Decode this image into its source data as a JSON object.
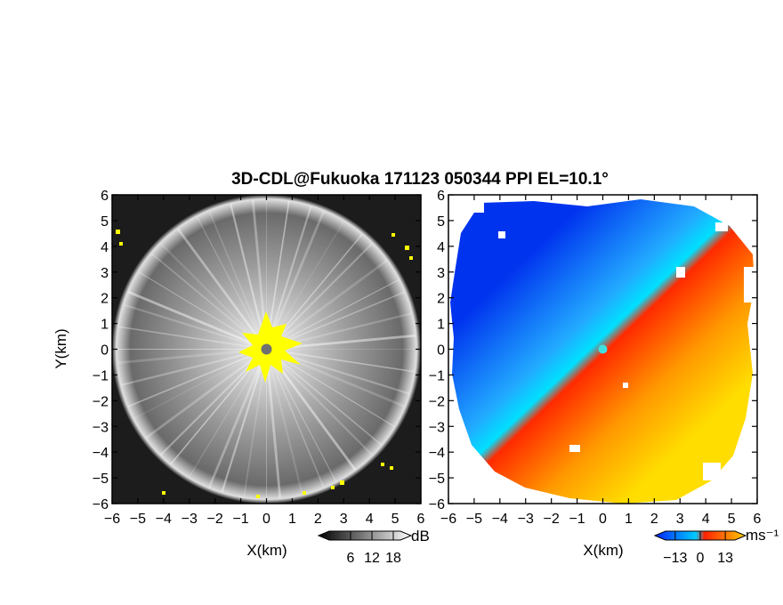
{
  "title": "3D-CDL@Fukuoka 171123 050344 PPI EL=10.1°",
  "chart_data": [
    {
      "type": "heatmap",
      "panel": "reflectivity",
      "xlabel": "X(km)",
      "ylabel": "Y(km)",
      "xlim": [
        -6,
        6
      ],
      "ylim": [
        -6,
        6
      ],
      "xticks": [
        "−6",
        "−5",
        "−4",
        "−3",
        "−2",
        "−1",
        "0",
        "1",
        "2",
        "3",
        "4",
        "5",
        "6"
      ],
      "yticks": [
        "6",
        "5",
        "4",
        "3",
        "2",
        "1",
        "0",
        "−1",
        "−2",
        "−3",
        "−4",
        "−5",
        "−6"
      ],
      "colorbar": {
        "unit": "dB",
        "ticks": [
          "6",
          "12",
          "18"
        ],
        "tick_values": [
          6,
          12,
          18
        ],
        "range": [
          0,
          20
        ],
        "colors": [
          "#000000",
          "#ffffff"
        ]
      },
      "radar_center": [
        0,
        0
      ],
      "data_range_radius_km": 5.9,
      "highlight_color": "#ffff00",
      "grid": false
    },
    {
      "type": "heatmap",
      "panel": "doppler_velocity",
      "xlabel": "X(km)",
      "ylabel": "",
      "xlim": [
        -6,
        6
      ],
      "ylim": [
        -6,
        6
      ],
      "xticks": [
        "−6",
        "−5",
        "−4",
        "−3",
        "−2",
        "−1",
        "0",
        "1",
        "2",
        "3",
        "4",
        "5",
        "6"
      ],
      "yticks": [
        "6",
        "5",
        "4",
        "3",
        "2",
        "1",
        "0",
        "−1",
        "−2",
        "−3",
        "−4",
        "−5",
        "−6"
      ],
      "colorbar": {
        "unit": "ms⁻¹",
        "ticks": [
          "−13",
          "0",
          "13"
        ],
        "tick_values": [
          -13,
          0,
          13
        ],
        "range": [
          -18,
          18
        ],
        "colors": [
          "#0022ff",
          "#00ccff",
          "#ff2200",
          "#ffcc00"
        ]
      },
      "radar_center": [
        0,
        0
      ],
      "data_range_radius_km": 5.9,
      "grid": false
    }
  ]
}
